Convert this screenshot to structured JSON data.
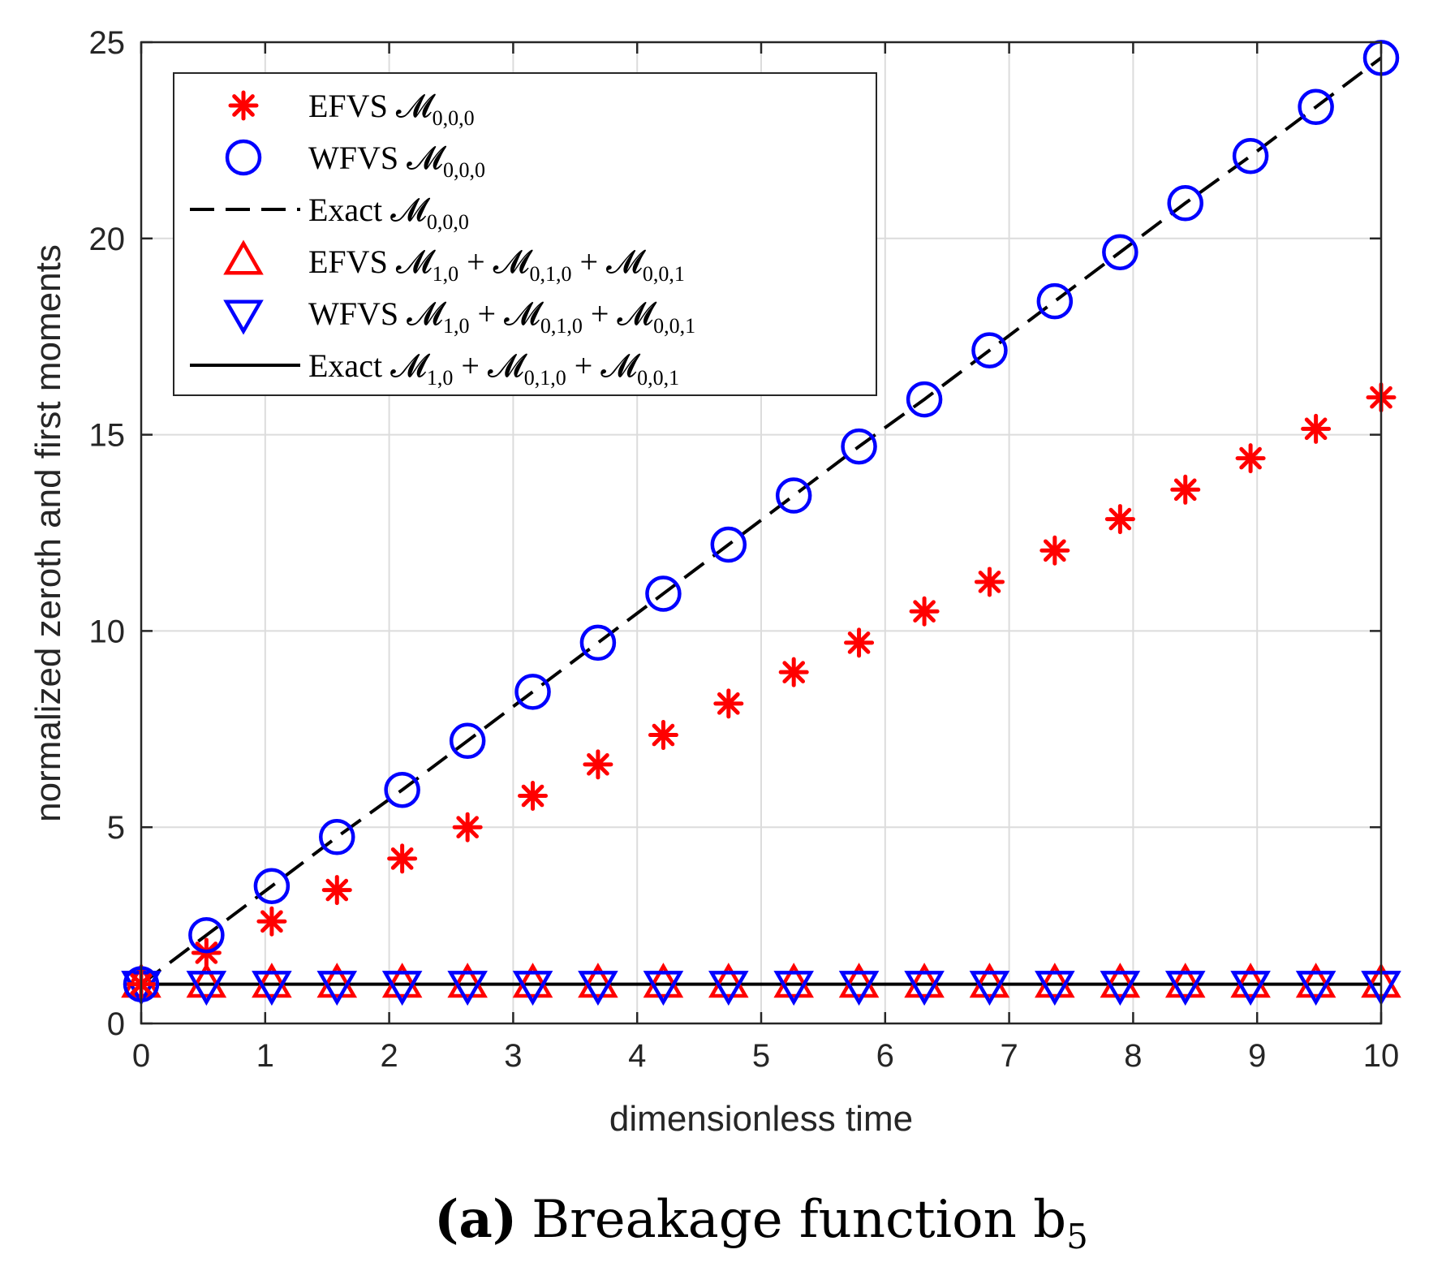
{
  "chart_data": {
    "type": "line",
    "xlabel": "dimensionless time",
    "ylabel": "normalized zeroth and first moments",
    "xlim": [
      0,
      10
    ],
    "ylim": [
      0,
      25
    ],
    "xticks": [
      "0",
      "1",
      "2",
      "3",
      "4",
      "5",
      "6",
      "7",
      "8",
      "9",
      "10"
    ],
    "yticks": [
      "0",
      "5",
      "10",
      "15",
      "20",
      "25"
    ],
    "grid": true,
    "legend_position": "top-left",
    "x": [
      0,
      0.526,
      1.053,
      1.579,
      2.105,
      2.632,
      3.158,
      3.684,
      4.211,
      4.737,
      5.263,
      5.789,
      6.316,
      6.842,
      7.368,
      7.895,
      8.421,
      8.947,
      9.474,
      10
    ],
    "series": [
      {
        "name": "EFVS",
        "label_math": "𝓜",
        "label_sub": "0,0,0",
        "marker": "asterisk",
        "color": "#ff0000",
        "values": [
          1.0,
          1.8,
          2.6,
          3.4,
          4.2,
          5.0,
          5.8,
          6.6,
          7.35,
          8.15,
          8.95,
          9.7,
          10.5,
          11.25,
          12.05,
          12.85,
          13.6,
          14.4,
          15.15,
          15.95
        ]
      },
      {
        "name": "WFVS",
        "label_math": "𝓜",
        "label_sub": "0,0,0",
        "marker": "circle",
        "color": "#0000ff",
        "values": [
          1.0,
          2.25,
          3.5,
          4.75,
          5.95,
          7.2,
          8.45,
          9.7,
          10.95,
          12.2,
          13.45,
          14.7,
          15.9,
          17.15,
          18.4,
          19.65,
          20.9,
          22.1,
          23.35,
          24.6
        ]
      },
      {
        "name": "Exact",
        "label_math": "𝓜",
        "label_sub": "0,0,0",
        "line": "dashed",
        "color": "#000000",
        "values": [
          1.0,
          2.25,
          3.5,
          4.75,
          5.95,
          7.2,
          8.45,
          9.7,
          10.95,
          12.2,
          13.45,
          14.7,
          15.9,
          17.15,
          18.4,
          19.65,
          20.9,
          22.1,
          23.35,
          24.6
        ]
      },
      {
        "name": "EFVS",
        "label_math": "𝓜",
        "label_sub": "1,0",
        "label_tail": "+ 𝓜",
        "label_sub2": "0,1,0",
        "label_tail2": "+ 𝓜",
        "label_sub3": "0,0,1",
        "marker": "triangle-up",
        "color": "#ff0000",
        "values": [
          1,
          1,
          1,
          1,
          1,
          1,
          1,
          1,
          1,
          1,
          1,
          1,
          1,
          1,
          1,
          1,
          1,
          1,
          1,
          1
        ]
      },
      {
        "name": "WFVS",
        "label_math": "𝓜",
        "label_sub": "1,0",
        "label_tail": "+ 𝓜",
        "label_sub2": "0,1,0",
        "label_tail2": "+ 𝓜",
        "label_sub3": "0,0,1",
        "marker": "triangle-down",
        "color": "#0000ff",
        "values": [
          1,
          1,
          1,
          1,
          1,
          1,
          1,
          1,
          1,
          1,
          1,
          1,
          1,
          1,
          1,
          1,
          1,
          1,
          1,
          1
        ]
      },
      {
        "name": "Exact",
        "label_math": "𝓜",
        "label_sub": "1,0",
        "label_tail": "+ 𝓜",
        "label_sub2": "0,1,0",
        "label_tail2": "+ 𝓜",
        "label_sub3": "0,0,1",
        "line": "solid",
        "color": "#000000",
        "values": [
          1,
          1,
          1,
          1,
          1,
          1,
          1,
          1,
          1,
          1,
          1,
          1,
          1,
          1,
          1,
          1,
          1,
          1,
          1,
          1
        ]
      }
    ]
  },
  "caption": {
    "label": "(a)",
    "text": "Breakage function b",
    "subscript": "5"
  }
}
